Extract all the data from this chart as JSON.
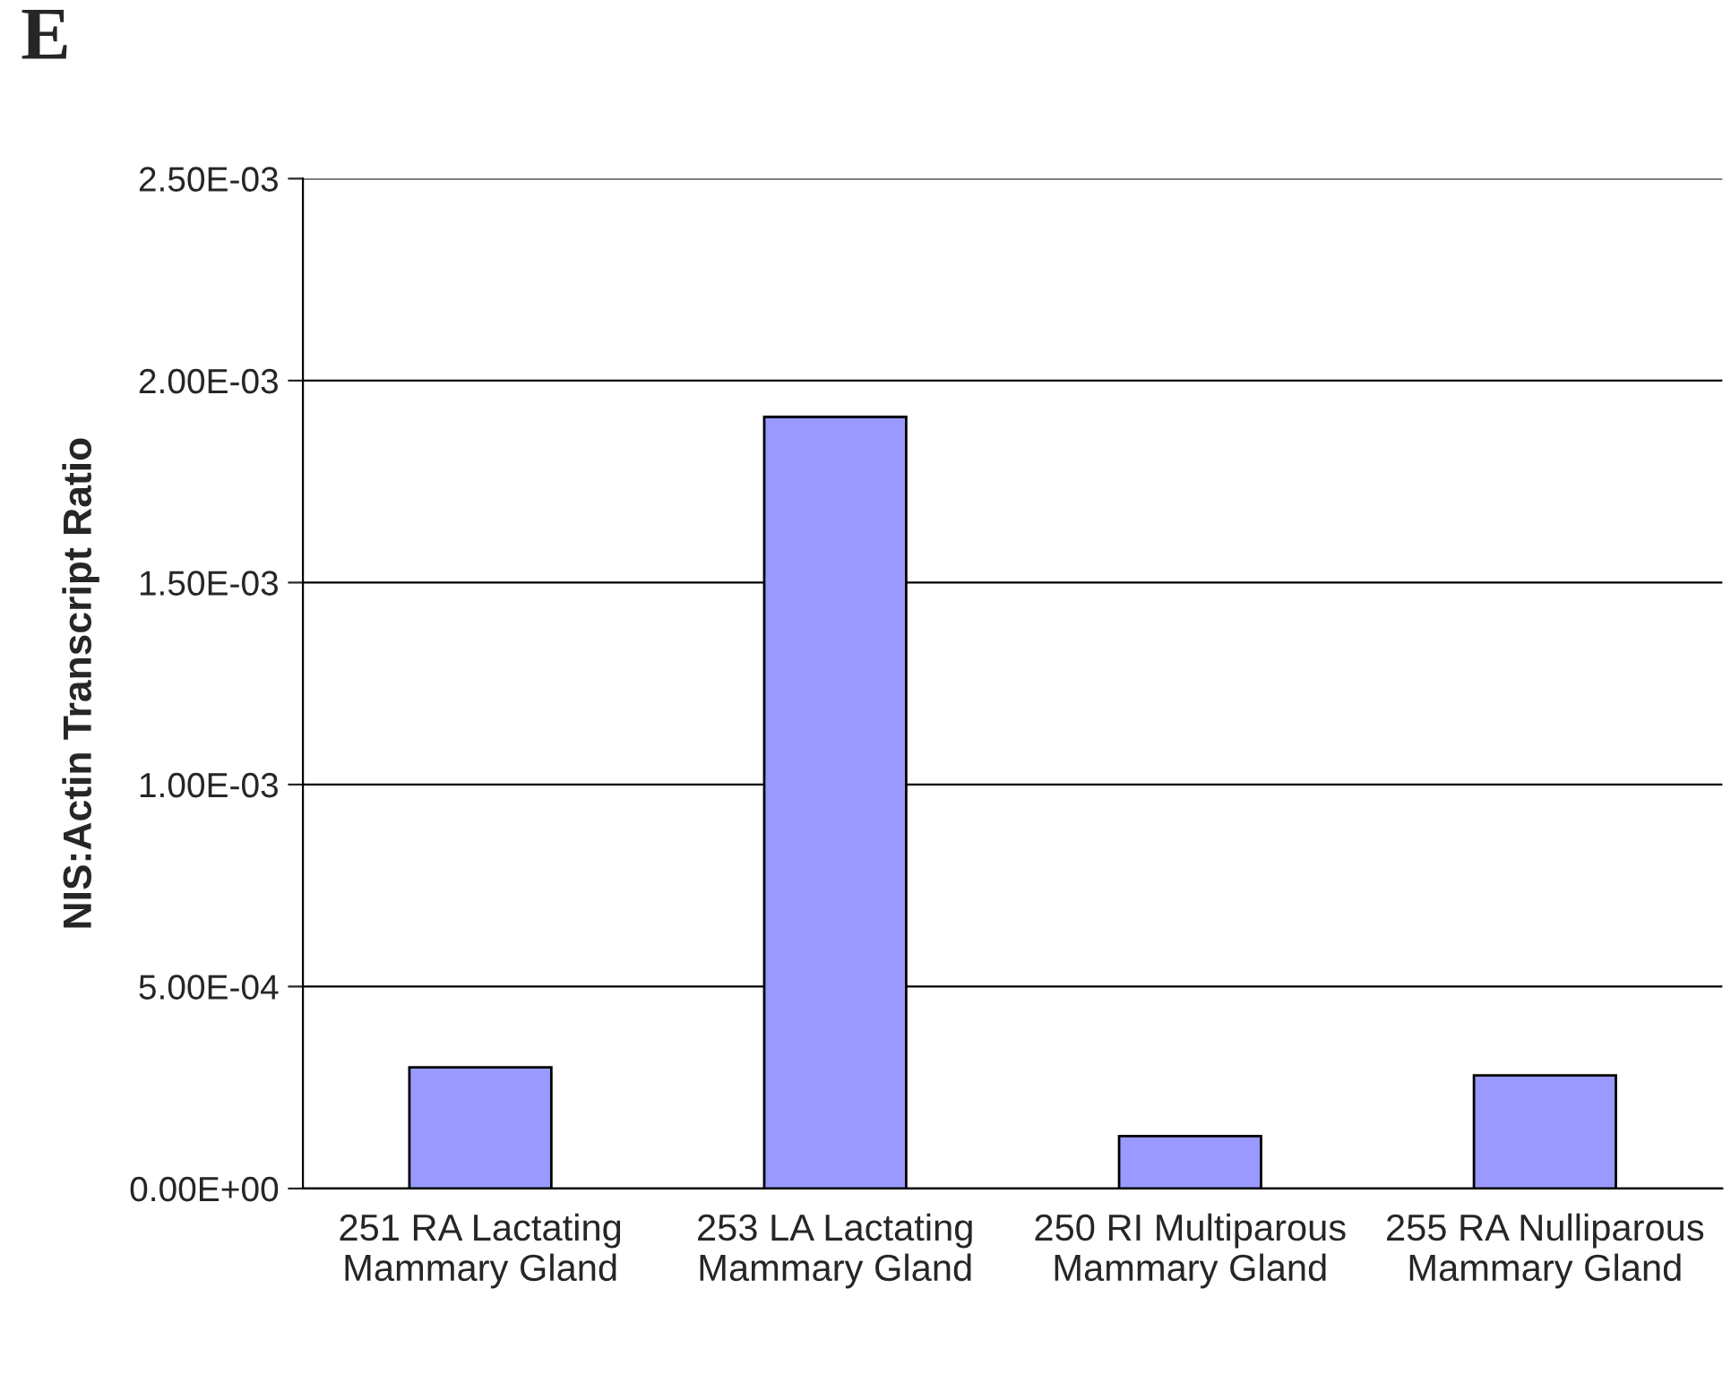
{
  "chart_data": {
    "type": "bar",
    "annotations": [
      "E"
    ],
    "ylabel": "NIS:Actin Transcript Ratio",
    "categories": [
      "251 RA Lactating\nMammary Gland",
      "253 LA Lactating\nMammary Gland",
      "250 RI Multiparous\nMammary Gland",
      "255 RA Nulliparous\nMammary Gland"
    ],
    "values": [
      0.0003,
      0.00191,
      0.00013,
      0.00028
    ],
    "color": "#9999ff",
    "ylim": [
      0,
      0.0025
    ],
    "yticks": [
      {
        "value": 0,
        "label": "0.00E+00"
      },
      {
        "value": 0.0005,
        "label": "5.00E-04"
      },
      {
        "value": 0.001,
        "label": "1.00E-03"
      },
      {
        "value": 0.0015,
        "label": "1.50E-03"
      },
      {
        "value": 0.002,
        "label": "2.00E-03"
      },
      {
        "value": 0.0025,
        "label": "2.50E-03"
      }
    ],
    "grid": "y",
    "legend": false
  }
}
